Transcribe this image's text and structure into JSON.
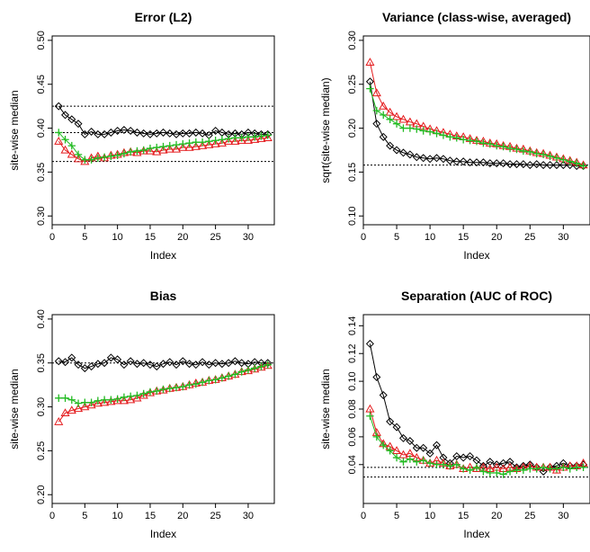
{
  "chart_data": [
    {
      "type": "line",
      "title": "Error (L2)",
      "xlabel": "Index",
      "ylabel": "site-wise median",
      "xlim": [
        0,
        34
      ],
      "ylim": [
        0.29,
        0.505
      ],
      "xticks": [
        0,
        5,
        10,
        15,
        20,
        25,
        30
      ],
      "yticks": [
        0.3,
        0.35,
        0.4,
        0.45,
        0.5
      ],
      "ytick_labels": [
        "0.30",
        "0.35",
        "0.40",
        "0.45",
        "0.50"
      ],
      "hlines": [
        0.425,
        0.395,
        0.362
      ],
      "x": [
        1,
        2,
        3,
        4,
        5,
        6,
        7,
        8,
        9,
        10,
        11,
        12,
        13,
        14,
        15,
        16,
        17,
        18,
        19,
        20,
        21,
        22,
        23,
        24,
        25,
        26,
        27,
        28,
        29,
        30,
        31,
        32,
        33
      ],
      "series": [
        {
          "color": "#000000",
          "marker": "diamond",
          "values": [
            0.425,
            0.415,
            0.41,
            0.405,
            0.393,
            0.396,
            0.393,
            0.393,
            0.395,
            0.397,
            0.398,
            0.397,
            0.395,
            0.394,
            0.393,
            0.394,
            0.395,
            0.394,
            0.393,
            0.394,
            0.394,
            0.395,
            0.394,
            0.392,
            0.397,
            0.395,
            0.393,
            0.394,
            0.393,
            0.395,
            0.394,
            0.393,
            0.393
          ]
        },
        {
          "color": "#e41a1c",
          "marker": "triangle",
          "values": [
            0.385,
            0.375,
            0.37,
            0.365,
            0.362,
            0.366,
            0.368,
            0.366,
            0.369,
            0.37,
            0.372,
            0.373,
            0.372,
            0.374,
            0.374,
            0.373,
            0.375,
            0.376,
            0.376,
            0.378,
            0.378,
            0.379,
            0.38,
            0.381,
            0.382,
            0.383,
            0.385,
            0.385,
            0.386,
            0.386,
            0.387,
            0.388,
            0.389
          ]
        },
        {
          "color": "#22bb22",
          "marker": "plus",
          "values": [
            0.395,
            0.387,
            0.38,
            0.37,
            0.364,
            0.364,
            0.366,
            0.367,
            0.368,
            0.369,
            0.371,
            0.373,
            0.374,
            0.375,
            0.377,
            0.378,
            0.379,
            0.38,
            0.381,
            0.382,
            0.383,
            0.384,
            0.384,
            0.385,
            0.386,
            0.387,
            0.388,
            0.389,
            0.389,
            0.39,
            0.39,
            0.391,
            0.392
          ]
        }
      ]
    },
    {
      "type": "line",
      "title": "Variance (class-wise, averaged)",
      "xlabel": "Index",
      "ylabel": "sqrt(site-wise median)",
      "xlim": [
        0,
        34
      ],
      "ylim": [
        0.09,
        0.305
      ],
      "xticks": [
        0,
        5,
        10,
        15,
        20,
        25,
        30
      ],
      "yticks": [
        0.1,
        0.15,
        0.2,
        0.25,
        0.3
      ],
      "ytick_labels": [
        "0.10",
        "0.15",
        "0.20",
        "0.25",
        "0.30"
      ],
      "hlines": [
        0.158
      ],
      "x": [
        1,
        2,
        3,
        4,
        5,
        6,
        7,
        8,
        9,
        10,
        11,
        12,
        13,
        14,
        15,
        16,
        17,
        18,
        19,
        20,
        21,
        22,
        23,
        24,
        25,
        26,
        27,
        28,
        29,
        30,
        31,
        32,
        33
      ],
      "series": [
        {
          "color": "#000000",
          "marker": "diamond",
          "values": [
            0.253,
            0.205,
            0.19,
            0.18,
            0.175,
            0.172,
            0.17,
            0.167,
            0.166,
            0.165,
            0.166,
            0.165,
            0.163,
            0.162,
            0.162,
            0.161,
            0.161,
            0.161,
            0.16,
            0.16,
            0.16,
            0.159,
            0.159,
            0.159,
            0.158,
            0.159,
            0.158,
            0.158,
            0.158,
            0.158,
            0.158,
            0.157,
            0.157
          ]
        },
        {
          "color": "#e41a1c",
          "marker": "triangle",
          "values": [
            0.275,
            0.24,
            0.225,
            0.218,
            0.213,
            0.21,
            0.207,
            0.205,
            0.202,
            0.199,
            0.197,
            0.195,
            0.193,
            0.191,
            0.19,
            0.188,
            0.186,
            0.185,
            0.183,
            0.182,
            0.18,
            0.179,
            0.177,
            0.176,
            0.174,
            0.172,
            0.171,
            0.169,
            0.167,
            0.165,
            0.163,
            0.161,
            0.158
          ]
        },
        {
          "color": "#22bb22",
          "marker": "plus",
          "values": [
            0.245,
            0.22,
            0.215,
            0.21,
            0.205,
            0.2,
            0.2,
            0.199,
            0.197,
            0.196,
            0.194,
            0.192,
            0.19,
            0.189,
            0.187,
            0.186,
            0.185,
            0.183,
            0.182,
            0.18,
            0.179,
            0.177,
            0.176,
            0.174,
            0.173,
            0.171,
            0.17,
            0.168,
            0.166,
            0.164,
            0.162,
            0.16,
            0.157
          ]
        }
      ]
    },
    {
      "type": "line",
      "title": "Bias",
      "xlabel": "Index",
      "ylabel": "site-wise median",
      "xlim": [
        0,
        34
      ],
      "ylim": [
        0.19,
        0.405
      ],
      "xticks": [
        0,
        5,
        10,
        15,
        20,
        25,
        30
      ],
      "yticks": [
        0.2,
        0.25,
        0.3,
        0.35,
        0.4
      ],
      "ytick_labels": [
        "0.20",
        "0.25",
        "0.30",
        "0.35",
        "0.40"
      ],
      "hlines": [
        0.35
      ],
      "x": [
        1,
        2,
        3,
        4,
        5,
        6,
        7,
        8,
        9,
        10,
        11,
        12,
        13,
        14,
        15,
        16,
        17,
        18,
        19,
        20,
        21,
        22,
        23,
        24,
        25,
        26,
        27,
        28,
        29,
        30,
        31,
        32,
        33
      ],
      "series": [
        {
          "color": "#000000",
          "marker": "diamond",
          "values": [
            0.352,
            0.351,
            0.356,
            0.348,
            0.344,
            0.346,
            0.349,
            0.35,
            0.356,
            0.354,
            0.348,
            0.352,
            0.349,
            0.35,
            0.348,
            0.346,
            0.349,
            0.351,
            0.348,
            0.352,
            0.349,
            0.348,
            0.351,
            0.348,
            0.35,
            0.349,
            0.35,
            0.352,
            0.35,
            0.349,
            0.351,
            0.35,
            0.35
          ]
        },
        {
          "color": "#e41a1c",
          "marker": "triangle",
          "values": [
            0.283,
            0.293,
            0.296,
            0.298,
            0.3,
            0.302,
            0.304,
            0.305,
            0.306,
            0.307,
            0.307,
            0.308,
            0.31,
            0.313,
            0.316,
            0.318,
            0.319,
            0.321,
            0.322,
            0.323,
            0.325,
            0.327,
            0.328,
            0.33,
            0.331,
            0.333,
            0.335,
            0.337,
            0.34,
            0.341,
            0.343,
            0.345,
            0.347
          ]
        },
        {
          "color": "#22bb22",
          "marker": "plus",
          "values": [
            0.31,
            0.31,
            0.308,
            0.304,
            0.305,
            0.305,
            0.307,
            0.308,
            0.308,
            0.309,
            0.311,
            0.312,
            0.313,
            0.315,
            0.317,
            0.318,
            0.32,
            0.321,
            0.322,
            0.323,
            0.325,
            0.326,
            0.328,
            0.33,
            0.331,
            0.333,
            0.335,
            0.337,
            0.34,
            0.342,
            0.344,
            0.346,
            0.348
          ]
        }
      ]
    },
    {
      "type": "line",
      "title": "Separation (AUC of ROC)",
      "xlabel": "Index",
      "ylabel": "site-wise median",
      "xlim": [
        0,
        34
      ],
      "ylim": [
        0.012,
        0.148
      ],
      "xticks": [
        0,
        5,
        10,
        15,
        20,
        25,
        30
      ],
      "yticks": [
        0.04,
        0.06,
        0.08,
        0.1,
        0.12,
        0.14
      ],
      "ytick_labels": [
        "0.04",
        "0.06",
        "0.08",
        "0.10",
        "0.12",
        "0.14"
      ],
      "hlines": [
        0.038,
        0.031
      ],
      "x": [
        1,
        2,
        3,
        4,
        5,
        6,
        7,
        8,
        9,
        10,
        11,
        12,
        13,
        14,
        15,
        16,
        17,
        18,
        19,
        20,
        21,
        22,
        23,
        24,
        25,
        26,
        27,
        28,
        29,
        30,
        31,
        32,
        33
      ],
      "series": [
        {
          "color": "#000000",
          "marker": "diamond",
          "values": [
            0.127,
            0.103,
            0.09,
            0.071,
            0.067,
            0.059,
            0.057,
            0.052,
            0.052,
            0.048,
            0.054,
            0.045,
            0.041,
            0.046,
            0.045,
            0.046,
            0.043,
            0.039,
            0.042,
            0.04,
            0.041,
            0.042,
            0.038,
            0.039,
            0.04,
            0.038,
            0.035,
            0.038,
            0.039,
            0.041,
            0.039,
            0.039,
            0.04
          ]
        },
        {
          "color": "#e41a1c",
          "marker": "triangle",
          "values": [
            0.08,
            0.063,
            0.055,
            0.053,
            0.05,
            0.047,
            0.048,
            0.045,
            0.043,
            0.041,
            0.043,
            0.041,
            0.039,
            0.04,
            0.037,
            0.038,
            0.037,
            0.038,
            0.037,
            0.038,
            0.037,
            0.038,
            0.037,
            0.038,
            0.039,
            0.038,
            0.038,
            0.038,
            0.036,
            0.038,
            0.039,
            0.039,
            0.041
          ]
        },
        {
          "color": "#22bb22",
          "marker": "plus",
          "values": [
            0.075,
            0.06,
            0.054,
            0.05,
            0.045,
            0.042,
            0.044,
            0.042,
            0.043,
            0.041,
            0.04,
            0.04,
            0.039,
            0.04,
            0.037,
            0.036,
            0.038,
            0.035,
            0.034,
            0.034,
            0.033,
            0.035,
            0.036,
            0.036,
            0.037,
            0.037,
            0.038,
            0.037,
            0.037,
            0.038,
            0.037,
            0.038,
            0.038
          ]
        }
      ]
    }
  ]
}
